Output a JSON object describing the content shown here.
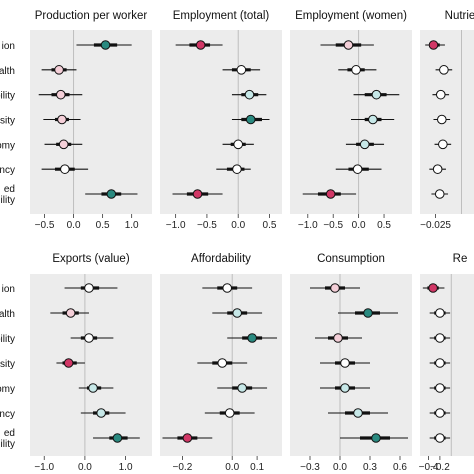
{
  "figure": {
    "row_labels": [
      "ion",
      "alth",
      "ability",
      "sity",
      "omy",
      "ency",
      "ed|ility"
    ],
    "colors": {
      "panel_bg": "#ececec",
      "zero_line": "#b9b9b9",
      "ci_line": "#111111",
      "significant_positive": "#2a8a80",
      "significant_negative": "#d13766",
      "nonsignificant": "#ffffff",
      "light_positive": "#c7e8e8",
      "light_negative": "#f4cfd8"
    }
  },
  "chart_data": [
    {
      "type": "forest",
      "title": "Production per worker",
      "xlim": [
        -0.75,
        1.35
      ],
      "ticks": [
        -0.5,
        0.0,
        0.5,
        1.0
      ],
      "tick_labels": [
        "−0.5",
        "0.0",
        "0.5",
        "1.0"
      ],
      "estimates": [
        0.55,
        -0.25,
        -0.22,
        -0.2,
        -0.17,
        -0.15,
        0.65
      ],
      "ci_inner": [
        [
          0.35,
          0.75
        ],
        [
          -0.38,
          -0.12
        ],
        [
          -0.38,
          -0.07
        ],
        [
          -0.32,
          -0.08
        ],
        [
          -0.3,
          -0.04
        ],
        [
          -0.32,
          0.02
        ],
        [
          0.48,
          0.82
        ]
      ],
      "ci_outer": [
        [
          0.05,
          1.0
        ],
        [
          -0.55,
          0.05
        ],
        [
          -0.6,
          0.15
        ],
        [
          -0.52,
          0.12
        ],
        [
          -0.5,
          0.15
        ],
        [
          -0.55,
          0.25
        ],
        [
          0.2,
          1.1
        ]
      ],
      "fills": [
        "#2a8a80",
        "#f4cfd8",
        "#f4cfd8",
        "#f4cfd8",
        "#f4cfd8",
        "#ffffff",
        "#2a8a80"
      ]
    },
    {
      "type": "forest",
      "title": "Employment (total)",
      "xlim": [
        -1.25,
        0.7
      ],
      "ticks": [
        -1.0,
        -0.5,
        0.0,
        0.5
      ],
      "tick_labels": [
        "−1.0",
        "−0.5",
        "0.0",
        "0.5"
      ],
      "estimates": [
        -0.6,
        0.05,
        0.18,
        0.2,
        0.0,
        -0.02,
        -0.65
      ],
      "ci_inner": [
        [
          -0.78,
          -0.45
        ],
        [
          -0.1,
          0.2
        ],
        [
          0.05,
          0.32
        ],
        [
          0.05,
          0.38
        ],
        [
          -0.12,
          0.12
        ],
        [
          -0.18,
          0.1
        ],
        [
          -0.82,
          -0.48
        ]
      ],
      "ci_outer": [
        [
          -1.0,
          -0.25
        ],
        [
          -0.25,
          0.35
        ],
        [
          -0.1,
          0.45
        ],
        [
          -0.1,
          0.5
        ],
        [
          -0.25,
          0.25
        ],
        [
          -0.35,
          0.2
        ],
        [
          -1.05,
          -0.25
        ]
      ],
      "fills": [
        "#d13766",
        "#ffffff",
        "#c7e8e8",
        "#2a8a80",
        "#ffffff",
        "#ffffff",
        "#d13766"
      ]
    },
    {
      "type": "forest",
      "title": "Employment (women)",
      "xlim": [
        -1.35,
        1.05
      ],
      "ticks": [
        -1.0,
        -0.5,
        0.0,
        0.5
      ],
      "tick_labels": [
        "−1.0",
        "−0.5",
        "0.0",
        "0.5"
      ],
      "estimates": [
        -0.2,
        -0.05,
        0.35,
        0.28,
        0.12,
        -0.02,
        -0.55
      ],
      "ci_inner": [
        [
          -0.45,
          0.05
        ],
        [
          -0.22,
          0.12
        ],
        [
          0.12,
          0.55
        ],
        [
          0.12,
          0.45
        ],
        [
          -0.05,
          0.3
        ],
        [
          -0.2,
          0.2
        ],
        [
          -0.8,
          -0.35
        ]
      ],
      "ci_outer": [
        [
          -0.75,
          0.3
        ],
        [
          -0.4,
          0.35
        ],
        [
          -0.1,
          0.8
        ],
        [
          -0.15,
          0.7
        ],
        [
          -0.25,
          0.5
        ],
        [
          -0.45,
          0.45
        ],
        [
          -1.1,
          -0.05
        ]
      ],
      "fills": [
        "#f4cfd8",
        "#ffffff",
        "#c7e8e8",
        "#c7e8e8",
        "#c7e8e8",
        "#ffffff",
        "#d13766"
      ]
    },
    {
      "type": "forest",
      "title": "Nutrie",
      "xlim": [
        -0.04,
        0.012
      ],
      "ticks": [
        -0.025
      ],
      "tick_labels": [
        "−0.025"
      ],
      "estimates": [
        -0.027,
        -0.017,
        -0.02,
        -0.019,
        -0.018,
        -0.023,
        -0.021
      ],
      "ci_inner": [
        [
          -0.031,
          -0.021
        ],
        [
          -0.021,
          -0.013
        ],
        [
          -0.024,
          -0.016
        ],
        [
          -0.023,
          -0.015
        ],
        [
          -0.022,
          -0.014
        ],
        [
          -0.027,
          -0.019
        ],
        [
          -0.025,
          -0.017
        ]
      ],
      "ci_outer": [
        [
          -0.035,
          -0.016
        ],
        [
          -0.025,
          -0.009
        ],
        [
          -0.028,
          -0.012
        ],
        [
          -0.027,
          -0.011
        ],
        [
          -0.026,
          -0.01
        ],
        [
          -0.031,
          -0.015
        ],
        [
          -0.029,
          -0.013
        ]
      ],
      "fills": [
        "#d13766",
        "#ffffff",
        "#ffffff",
        "#ffffff",
        "#ffffff",
        "#ffffff",
        "#ffffff"
      ]
    },
    {
      "type": "forest",
      "title": "Exports (value)",
      "xlim": [
        -1.35,
        1.65
      ],
      "ticks": [
        -1.0,
        0.0,
        1.0
      ],
      "tick_labels": [
        "−1.0",
        "0.0",
        "1.0"
      ],
      "estimates": [
        0.1,
        -0.35,
        0.1,
        -0.4,
        0.2,
        0.4,
        0.8
      ],
      "ci_inner": [
        [
          -0.1,
          0.35
        ],
        [
          -0.55,
          -0.15
        ],
        [
          -0.1,
          0.3
        ],
        [
          -0.55,
          -0.2
        ],
        [
          0.05,
          0.4
        ],
        [
          0.2,
          0.6
        ],
        [
          0.6,
          1.05
        ]
      ],
      "ci_outer": [
        [
          -0.5,
          0.8
        ],
        [
          -0.85,
          0.1
        ],
        [
          -0.35,
          0.7
        ],
        [
          -0.7,
          0.0
        ],
        [
          -0.15,
          0.7
        ],
        [
          -0.1,
          1.0
        ],
        [
          0.2,
          1.35
        ]
      ],
      "fills": [
        "#ffffff",
        "#f4cfd8",
        "#ffffff",
        "#d13766",
        "#c7e8e8",
        "#c7e8e8",
        "#2a8a80"
      ]
    },
    {
      "type": "forest",
      "title": "Affordability",
      "xlim": [
        -0.29,
        0.2
      ],
      "ticks": [
        -0.2,
        0.0,
        0.1
      ],
      "tick_labels": [
        "−0.2",
        "0.0",
        "0.1"
      ],
      "estimates": [
        -0.02,
        0.02,
        0.08,
        -0.04,
        0.04,
        -0.01,
        -0.18
      ],
      "ci_inner": [
        [
          -0.06,
          0.02
        ],
        [
          -0.02,
          0.06
        ],
        [
          0.04,
          0.12
        ],
        [
          -0.08,
          0.0
        ],
        [
          0.0,
          0.08
        ],
        [
          -0.05,
          0.03
        ],
        [
          -0.22,
          -0.14
        ]
      ],
      "ci_outer": [
        [
          -0.12,
          0.08
        ],
        [
          -0.08,
          0.12
        ],
        [
          -0.02,
          0.18
        ],
        [
          -0.14,
          0.06
        ],
        [
          -0.06,
          0.14
        ],
        [
          -0.11,
          0.09
        ],
        [
          -0.28,
          -0.08
        ]
      ],
      "fills": [
        "#ffffff",
        "#c7e8e8",
        "#2a8a80",
        "#ffffff",
        "#c7e8e8",
        "#ffffff",
        "#d13766"
      ]
    },
    {
      "type": "forest",
      "title": "Consumption",
      "xlim": [
        -0.5,
        0.72
      ],
      "ticks": [
        -0.3,
        0.0,
        0.3,
        0.6
      ],
      "tick_labels": [
        "−0.3",
        "0.0",
        "0.3",
        "0.6"
      ],
      "estimates": [
        -0.05,
        0.28,
        -0.02,
        0.05,
        0.05,
        0.18,
        0.36
      ],
      "ci_inner": [
        [
          -0.15,
          0.05
        ],
        [
          0.15,
          0.4
        ],
        [
          -0.12,
          0.08
        ],
        [
          -0.05,
          0.15
        ],
        [
          -0.05,
          0.15
        ],
        [
          0.05,
          0.3
        ],
        [
          0.2,
          0.5
        ]
      ],
      "ci_outer": [
        [
          -0.3,
          0.2
        ],
        [
          -0.02,
          0.58
        ],
        [
          -0.25,
          0.22
        ],
        [
          -0.2,
          0.3
        ],
        [
          -0.2,
          0.3
        ],
        [
          -0.12,
          0.48
        ],
        [
          0.0,
          0.68
        ]
      ],
      "fills": [
        "#f4cfd8",
        "#2a8a80",
        "#f4cfd8",
        "#ffffff",
        "#c7e8e8",
        "#c7e8e8",
        "#2a8a80"
      ]
    },
    {
      "type": "forest",
      "title": "Re",
      "xlim": [
        -0.55,
        0.4
      ],
      "ticks": [
        -0.4,
        -0.2
      ],
      "tick_labels": [
        "−0.4",
        "−0.2"
      ],
      "estimates": [
        -0.32,
        -0.2,
        -0.2,
        -0.2,
        -0.2,
        -0.2,
        -0.2
      ],
      "ci_inner": [
        [
          -0.42,
          -0.22
        ],
        [
          -0.3,
          -0.1
        ],
        [
          -0.3,
          -0.1
        ],
        [
          -0.3,
          -0.1
        ],
        [
          -0.3,
          -0.1
        ],
        [
          -0.3,
          -0.1
        ],
        [
          -0.3,
          -0.1
        ]
      ],
      "ci_outer": [
        [
          -0.5,
          -0.12
        ],
        [
          -0.38,
          -0.02
        ],
        [
          -0.38,
          -0.02
        ],
        [
          -0.38,
          -0.02
        ],
        [
          -0.38,
          -0.02
        ],
        [
          -0.38,
          -0.02
        ],
        [
          -0.38,
          -0.02
        ]
      ],
      "fills": [
        "#d13766",
        "#ffffff",
        "#ffffff",
        "#ffffff",
        "#ffffff",
        "#ffffff",
        "#ffffff"
      ]
    }
  ]
}
